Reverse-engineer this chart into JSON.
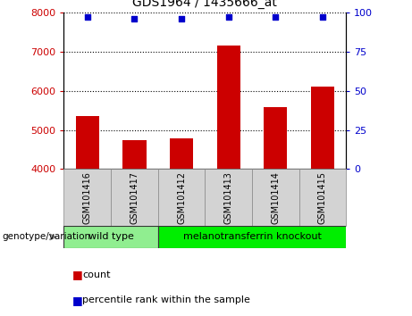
{
  "title": "GDS1964 / 1435666_at",
  "samples": [
    "GSM101416",
    "GSM101417",
    "GSM101412",
    "GSM101413",
    "GSM101414",
    "GSM101415"
  ],
  "counts": [
    5350,
    4750,
    4780,
    7150,
    5580,
    6100
  ],
  "percentile_ranks": [
    97,
    96,
    96,
    97,
    97,
    97
  ],
  "ylim_left": [
    4000,
    8000
  ],
  "ylim_right": [
    0,
    100
  ],
  "yticks_left": [
    4000,
    5000,
    6000,
    7000,
    8000
  ],
  "yticks_right": [
    0,
    25,
    50,
    75,
    100
  ],
  "bar_color": "#cc0000",
  "dot_color": "#0000cc",
  "groups": [
    {
      "label": "wild type",
      "indices": [
        0,
        1
      ],
      "color": "#90ee90"
    },
    {
      "label": "melanotransferrin knockout",
      "indices": [
        2,
        3,
        4,
        5
      ],
      "color": "#00ee00"
    }
  ],
  "genotype_label": "genotype/variation",
  "legend_count_label": "count",
  "legend_percentile_label": "percentile rank within the sample",
  "left_tick_color": "#cc0000",
  "right_tick_color": "#0000cc",
  "bar_bottom": 4000
}
